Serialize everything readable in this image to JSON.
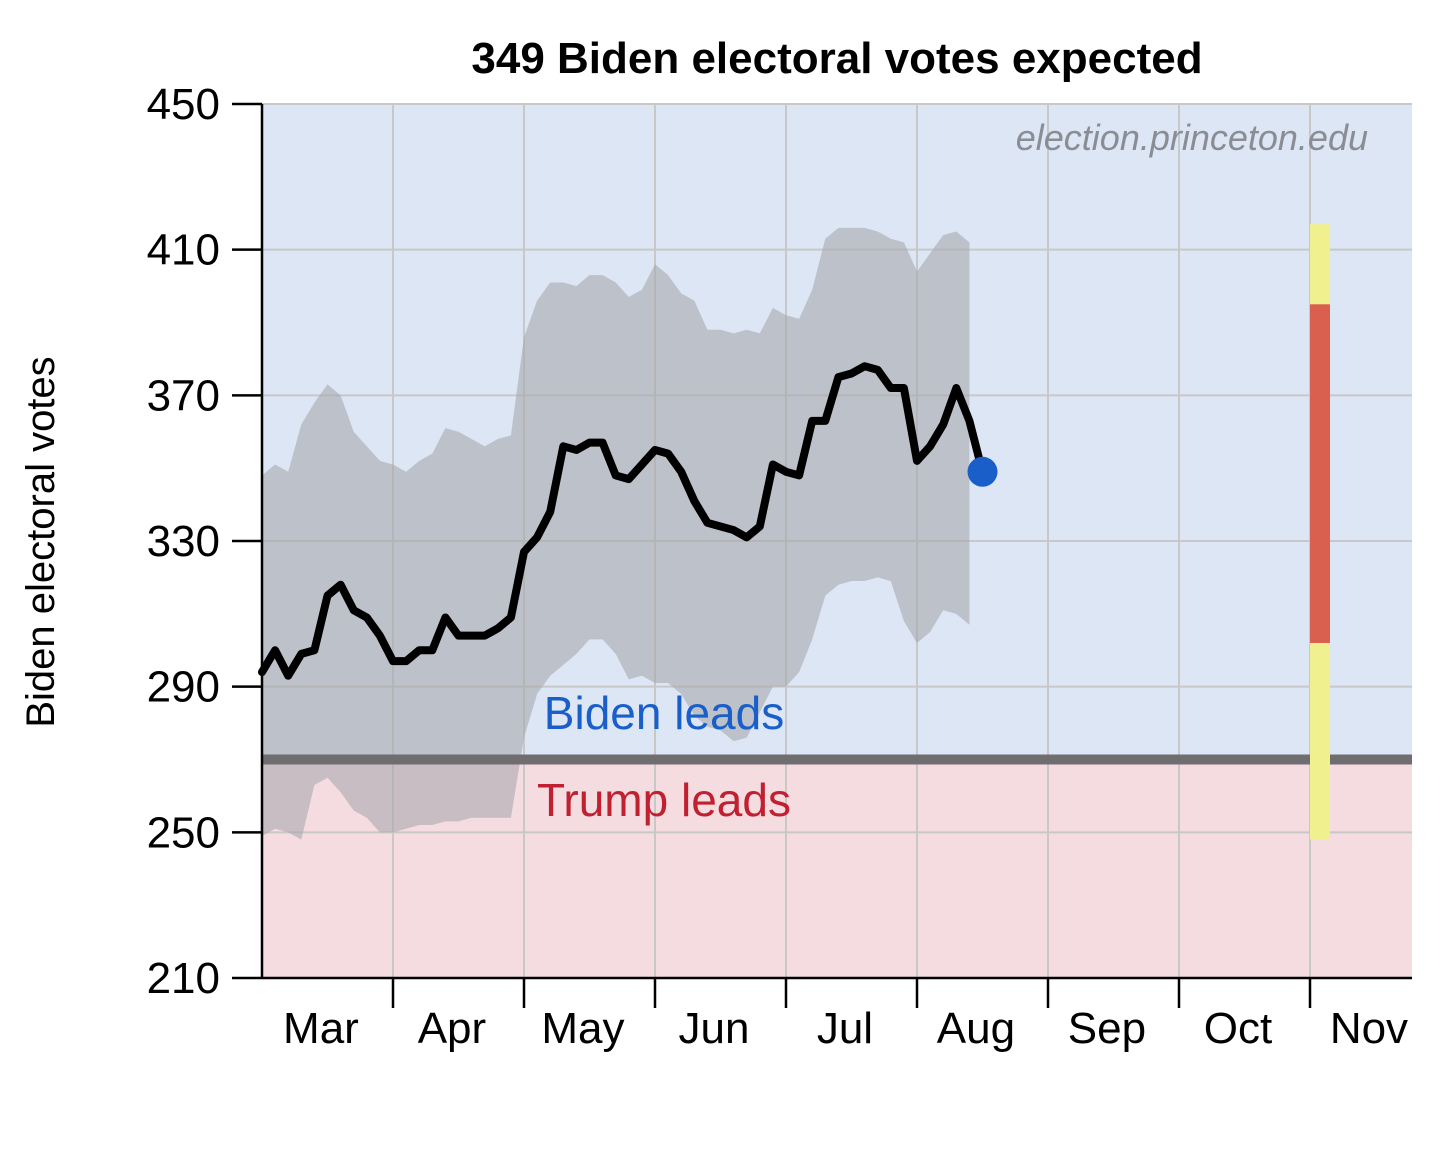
{
  "chart_data": {
    "type": "line",
    "title": "349 Biden electoral votes expected",
    "ylabel": "Biden electoral votes",
    "xlabel": "",
    "ylim": [
      210,
      450
    ],
    "yticks": [
      210,
      250,
      290,
      330,
      370,
      410,
      450
    ],
    "months": [
      "Mar",
      "Apr",
      "May",
      "Jun",
      "Jul",
      "Aug",
      "Sep",
      "Oct",
      "Nov"
    ],
    "watermark": "election.princeton.edu",
    "threshold": 270,
    "region_labels": {
      "upper": "Biden leads",
      "lower": "Trump leads"
    },
    "colors": {
      "biden_bg": "#dce6f5",
      "trump_bg": "#f5dce0",
      "band": "#a8a9ad",
      "line": "#000000",
      "current_point": "#1a5fc9",
      "threshold_line": "#6f6d70",
      "nov_outer": "#f0f08e",
      "nov_inner": "#d9604f",
      "grid": "#c8c8c8"
    },
    "series": [
      {
        "name": "Median Biden electoral votes",
        "x_month": [
          0.0,
          0.1,
          0.2,
          0.3,
          0.4,
          0.5,
          0.6,
          0.7,
          0.8,
          0.9,
          1.0,
          1.1,
          1.2,
          1.3,
          1.4,
          1.5,
          1.6,
          1.7,
          1.8,
          1.9,
          2.0,
          2.1,
          2.2,
          2.3,
          2.4,
          2.5,
          2.6,
          2.7,
          2.8,
          2.9,
          3.0,
          3.1,
          3.2,
          3.3,
          3.4,
          3.5,
          3.6,
          3.7,
          3.8,
          3.9,
          4.0,
          4.1,
          4.2,
          4.3,
          4.4,
          4.5,
          4.6,
          4.7,
          4.8,
          4.9,
          5.0,
          5.1,
          5.2,
          5.3,
          5.4
        ],
        "values": [
          294,
          300,
          293,
          299,
          300,
          315,
          318,
          311,
          309,
          304,
          297,
          297,
          300,
          300,
          309,
          304,
          304,
          304,
          306,
          309,
          327,
          331,
          338,
          356,
          355,
          357,
          357,
          348,
          347,
          351,
          355,
          354,
          349,
          341,
          335,
          334,
          333,
          331,
          334,
          351,
          349,
          348,
          363,
          363,
          375,
          376,
          378,
          377,
          372,
          372,
          352,
          356,
          362,
          372,
          363
        ],
        "current": {
          "x_month": 5.5,
          "value": 349
        }
      }
    ],
    "band": {
      "name": "Uncertainty band",
      "x_month": [
        0.0,
        0.1,
        0.2,
        0.3,
        0.4,
        0.5,
        0.6,
        0.7,
        0.8,
        0.9,
        1.0,
        1.1,
        1.2,
        1.3,
        1.4,
        1.5,
        1.6,
        1.7,
        1.8,
        1.9,
        2.0,
        2.1,
        2.2,
        2.3,
        2.4,
        2.5,
        2.6,
        2.7,
        2.8,
        2.9,
        3.0,
        3.1,
        3.2,
        3.3,
        3.4,
        3.5,
        3.6,
        3.7,
        3.8,
        3.9,
        4.0,
        4.1,
        4.2,
        4.3,
        4.4,
        4.5,
        4.6,
        4.7,
        4.8,
        4.9,
        5.0,
        5.1,
        5.2,
        5.3,
        5.4
      ],
      "lower": [
        249,
        251,
        250,
        248,
        263,
        265,
        261,
        256,
        254,
        250,
        250,
        251,
        252,
        252,
        253,
        253,
        254,
        254,
        254,
        254,
        276,
        288,
        293,
        296,
        299,
        303,
        303,
        299,
        292,
        293,
        291,
        291,
        288,
        282,
        279,
        278,
        275,
        276,
        283,
        290,
        290,
        294,
        303,
        315,
        318,
        319,
        319,
        320,
        319,
        308,
        302,
        305,
        311,
        310,
        307
      ],
      "upper": [
        348,
        351,
        349,
        362,
        368,
        373,
        370,
        360,
        356,
        352,
        351,
        349,
        352,
        354,
        361,
        360,
        358,
        356,
        358,
        359,
        386,
        396,
        401,
        401,
        400,
        403,
        403,
        401,
        397,
        399,
        406,
        403,
        398,
        396,
        388,
        388,
        387,
        388,
        387,
        394,
        392,
        391,
        399,
        413,
        416,
        416,
        416,
        415,
        413,
        412,
        404,
        409,
        414,
        415,
        412
      ]
    },
    "november_projection": {
      "x_month": 8.0,
      "outer_range": [
        248,
        417
      ],
      "inner_range": [
        302,
        395
      ]
    }
  }
}
